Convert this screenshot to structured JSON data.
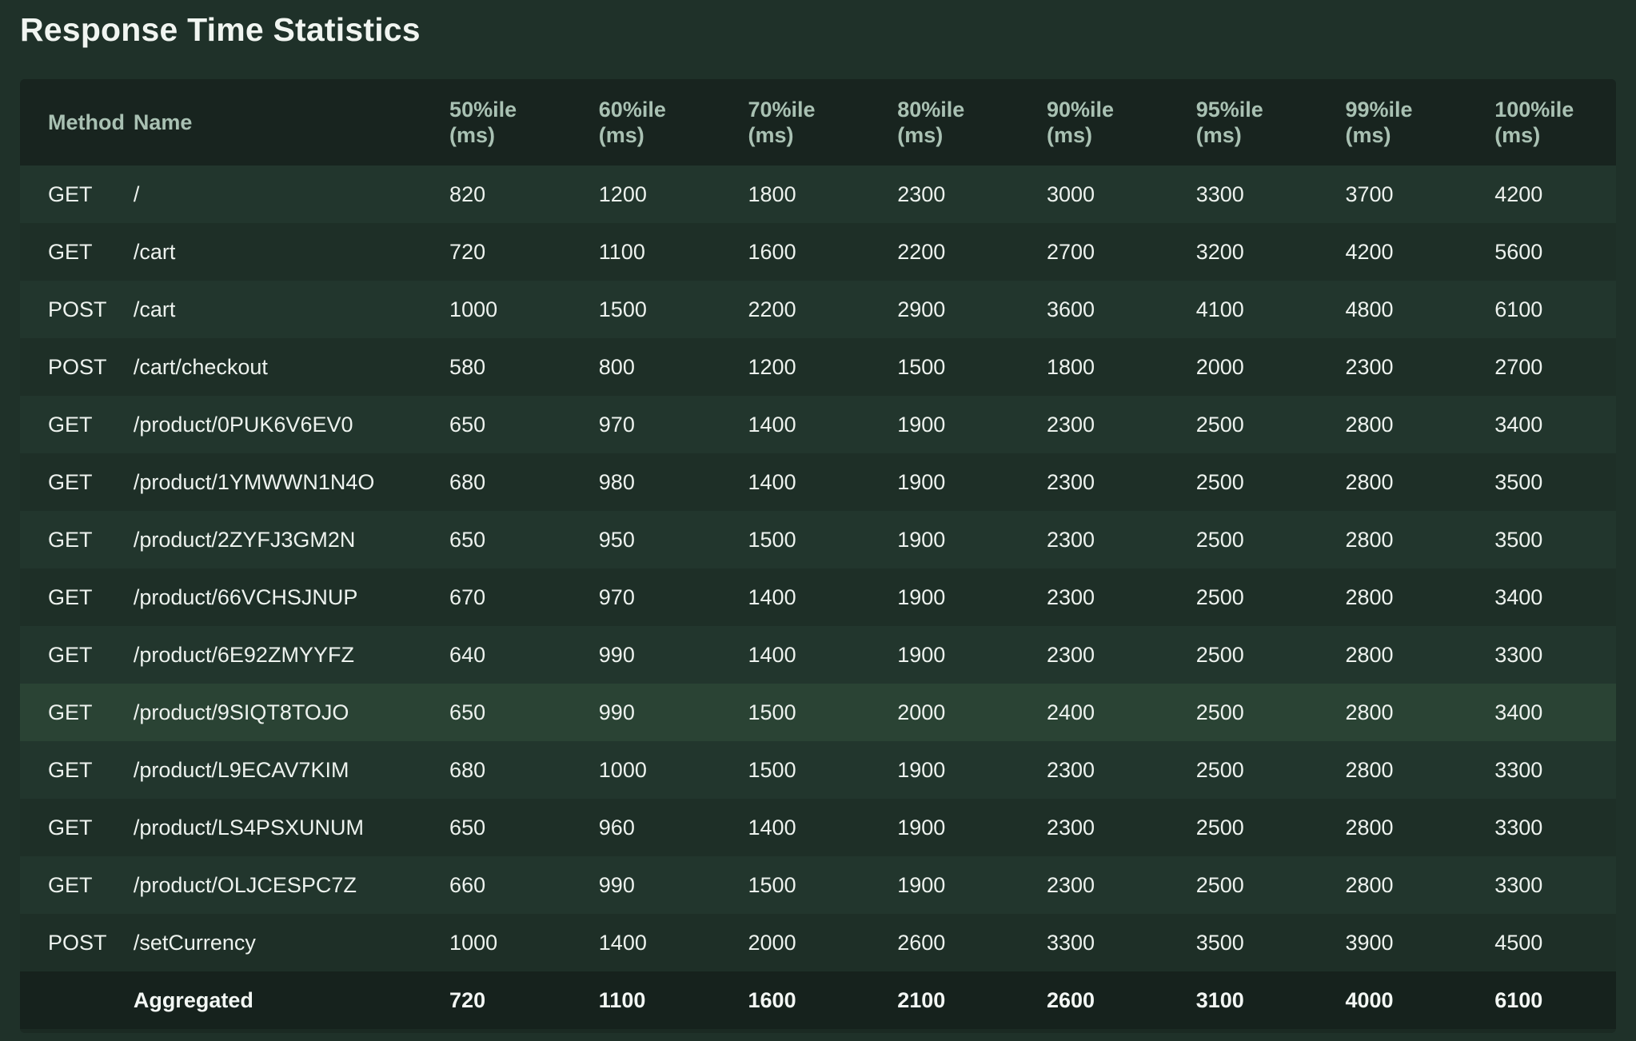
{
  "page": {
    "title": "Response Time Statistics"
  },
  "table": {
    "columns": {
      "method": "Method",
      "name": "Name",
      "p50": [
        "50%ile",
        "(ms)"
      ],
      "p60": [
        "60%ile",
        "(ms)"
      ],
      "p70": [
        "70%ile",
        "(ms)"
      ],
      "p80": [
        "80%ile",
        "(ms)"
      ],
      "p90": [
        "90%ile",
        "(ms)"
      ],
      "p95": [
        "95%ile",
        "(ms)"
      ],
      "p99": [
        "99%ile",
        "(ms)"
      ],
      "p100": [
        "100%ile",
        "(ms)"
      ]
    },
    "rows": [
      {
        "method": "GET",
        "name": "/",
        "p50": "820",
        "p60": "1200",
        "p70": "1800",
        "p80": "2300",
        "p90": "3000",
        "p95": "3300",
        "p99": "3700",
        "p100": "4200"
      },
      {
        "method": "GET",
        "name": "/cart",
        "p50": "720",
        "p60": "1100",
        "p70": "1600",
        "p80": "2200",
        "p90": "2700",
        "p95": "3200",
        "p99": "4200",
        "p100": "5600"
      },
      {
        "method": "POST",
        "name": "/cart",
        "p50": "1000",
        "p60": "1500",
        "p70": "2200",
        "p80": "2900",
        "p90": "3600",
        "p95": "4100",
        "p99": "4800",
        "p100": "6100"
      },
      {
        "method": "POST",
        "name": "/cart/checkout",
        "p50": "580",
        "p60": "800",
        "p70": "1200",
        "p80": "1500",
        "p90": "1800",
        "p95": "2000",
        "p99": "2300",
        "p100": "2700"
      },
      {
        "method": "GET",
        "name": "/product/0PUK6V6EV0",
        "p50": "650",
        "p60": "970",
        "p70": "1400",
        "p80": "1900",
        "p90": "2300",
        "p95": "2500",
        "p99": "2800",
        "p100": "3400"
      },
      {
        "method": "GET",
        "name": "/product/1YMWWN1N4O",
        "p50": "680",
        "p60": "980",
        "p70": "1400",
        "p80": "1900",
        "p90": "2300",
        "p95": "2500",
        "p99": "2800",
        "p100": "3500"
      },
      {
        "method": "GET",
        "name": "/product/2ZYFJ3GM2N",
        "p50": "650",
        "p60": "950",
        "p70": "1500",
        "p80": "1900",
        "p90": "2300",
        "p95": "2500",
        "p99": "2800",
        "p100": "3500"
      },
      {
        "method": "GET",
        "name": "/product/66VCHSJNUP",
        "p50": "670",
        "p60": "970",
        "p70": "1400",
        "p80": "1900",
        "p90": "2300",
        "p95": "2500",
        "p99": "2800",
        "p100": "3400"
      },
      {
        "method": "GET",
        "name": "/product/6E92ZMYYFZ",
        "p50": "640",
        "p60": "990",
        "p70": "1400",
        "p80": "1900",
        "p90": "2300",
        "p95": "2500",
        "p99": "2800",
        "p100": "3300"
      },
      {
        "method": "GET",
        "name": "/product/9SIQT8TOJO",
        "p50": "650",
        "p60": "990",
        "p70": "1500",
        "p80": "2000",
        "p90": "2400",
        "p95": "2500",
        "p99": "2800",
        "p100": "3400",
        "highlighted": true
      },
      {
        "method": "GET",
        "name": "/product/L9ECAV7KIM",
        "p50": "680",
        "p60": "1000",
        "p70": "1500",
        "p80": "1900",
        "p90": "2300",
        "p95": "2500",
        "p99": "2800",
        "p100": "3300"
      },
      {
        "method": "GET",
        "name": "/product/LS4PSXUNUM",
        "p50": "650",
        "p60": "960",
        "p70": "1400",
        "p80": "1900",
        "p90": "2300",
        "p95": "2500",
        "p99": "2800",
        "p100": "3300"
      },
      {
        "method": "GET",
        "name": "/product/OLJCESPC7Z",
        "p50": "660",
        "p60": "990",
        "p70": "1500",
        "p80": "1900",
        "p90": "2300",
        "p95": "2500",
        "p99": "2800",
        "p100": "3300"
      },
      {
        "method": "POST",
        "name": "/setCurrency",
        "p50": "1000",
        "p60": "1400",
        "p70": "2000",
        "p80": "2600",
        "p90": "3300",
        "p95": "3500",
        "p99": "3900",
        "p100": "4500"
      }
    ],
    "aggregated": {
      "method": "",
      "name": "Aggregated",
      "p50": "720",
      "p60": "1100",
      "p70": "1600",
      "p80": "2100",
      "p90": "2600",
      "p95": "3100",
      "p99": "4000",
      "p100": "6100"
    }
  }
}
